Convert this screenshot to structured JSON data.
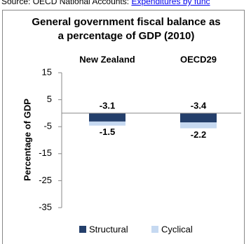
{
  "source_text": "Source: OECD National Accounts:",
  "source_link": "Expenditures by func",
  "chart_data": {
    "type": "stacked-bar",
    "title": "General government fiscal balance as a percentage of GDP (2010)",
    "y_label": "Percentage of GDP",
    "categories": [
      "New Zealand",
      "OECD29"
    ],
    "series": [
      {
        "name": "Structural",
        "color": "#243f6b",
        "values": [
          -3.1,
          -3.4
        ]
      },
      {
        "name": "Cyclical",
        "color": "#c6d9f1",
        "values": [
          -1.5,
          -2.2
        ]
      }
    ],
    "ylim": [
      -35,
      15
    ],
    "yticks": [
      15,
      5,
      -5,
      -15,
      -25,
      -35
    ],
    "legend": "bottom"
  }
}
